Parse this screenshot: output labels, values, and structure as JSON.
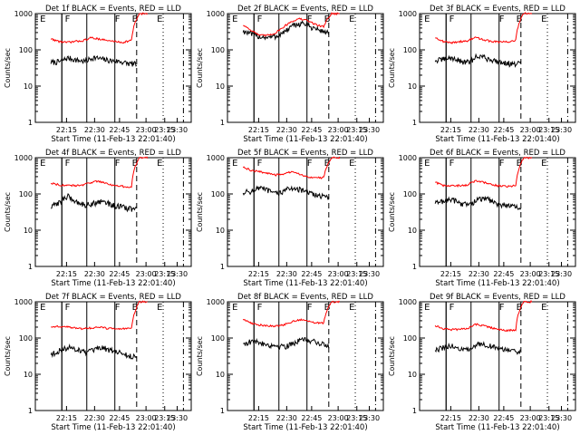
{
  "colors": {
    "events": "#000000",
    "lld": "#ff0000",
    "axis": "#000000",
    "background": "#ffffff"
  },
  "chart_data": [
    {
      "type": "line",
      "title": "Det 1f BLACK = Events, RED = LLD",
      "ylabel": "Counts/sec",
      "xlabel": "Start Time (11-Feb-13 22:01:40)",
      "xticks": [
        "22:15",
        "22:30",
        "22:45",
        "23:00",
        "23:15",
        "23:30"
      ],
      "yticks": [
        "1",
        "10",
        "100",
        "1000"
      ],
      "yscale": "log",
      "ylim": [
        1,
        1000
      ],
      "markers": [
        "E",
        "F",
        "F",
        "B",
        "E"
      ],
      "series": [
        {
          "name": "Events",
          "values": [
            45,
            47,
            60,
            52,
            48,
            62,
            55,
            50,
            48,
            42,
            40
          ]
        },
        {
          "name": "LLD",
          "values": [
            200,
            170,
            160,
            170,
            180,
            215,
            200,
            180,
            170,
            160,
            185,
            1000,
            1000
          ]
        }
      ]
    },
    {
      "type": "line",
      "title": "Det 2f BLACK = Events, RED = LLD",
      "ylabel": "Counts/sec",
      "xlabel": "Start Time (11-Feb-13 22:01:40)",
      "xticks": [
        "22:15",
        "22:30",
        "22:45",
        "23:00",
        "23:15",
        "23:30"
      ],
      "yticks": [
        "1",
        "10",
        "100",
        "1000"
      ],
      "yscale": "log",
      "ylim": [
        1,
        1000
      ],
      "markers": [
        "E",
        "F",
        "F",
        "B",
        "E"
      ],
      "series": [
        {
          "name": "Events",
          "values": [
            330,
            270,
            230,
            220,
            240,
            330,
            480,
            550,
            420,
            340,
            300
          ]
        },
        {
          "name": "LLD",
          "values": [
            480,
            350,
            250,
            250,
            290,
            420,
            600,
            720,
            640,
            500,
            430,
            1000,
            1000
          ]
        }
      ]
    },
    {
      "type": "line",
      "title": "Det 3f BLACK = Events, RED = LLD",
      "ylabel": "Counts/sec",
      "xlabel": "Start Time (11-Feb-13 22:01:40)",
      "xticks": [
        "22:15",
        "22:30",
        "22:45",
        "23:00",
        "23:15",
        "23:30"
      ],
      "yticks": [
        "1",
        "10",
        "100",
        "1000"
      ],
      "yscale": "log",
      "ylim": [
        1,
        1000
      ],
      "markers": [
        "E",
        "F",
        "F",
        "B",
        "E"
      ],
      "series": [
        {
          "name": "Events",
          "values": [
            50,
            55,
            60,
            48,
            45,
            70,
            58,
            50,
            45,
            40,
            42
          ]
        },
        {
          "name": "LLD",
          "values": [
            220,
            170,
            155,
            170,
            175,
            220,
            190,
            170,
            165,
            165,
            185,
            1000,
            1000
          ]
        }
      ]
    },
    {
      "type": "line",
      "title": "Det 4f BLACK = Events, RED = LLD",
      "ylabel": "Counts/sec",
      "xlabel": "Start Time (11-Feb-13 22:01:40)",
      "xticks": [
        "22:15",
        "22:30",
        "22:45",
        "23:00",
        "23:15",
        "23:30"
      ],
      "yticks": [
        "1",
        "10",
        "100",
        "1000"
      ],
      "yscale": "log",
      "ylim": [
        1,
        1000
      ],
      "markers": [
        "E",
        "F",
        "F",
        "B",
        "E"
      ],
      "series": [
        {
          "name": "Events",
          "values": [
            42,
            60,
            85,
            60,
            50,
            55,
            65,
            50,
            45,
            40,
            38
          ]
        },
        {
          "name": "LLD",
          "values": [
            200,
            180,
            170,
            170,
            175,
            210,
            225,
            190,
            170,
            160,
            155,
            1000,
            1000
          ]
        }
      ]
    },
    {
      "type": "line",
      "title": "Det 5f BLACK = Events, RED = LLD",
      "ylabel": "Counts/sec",
      "xlabel": "Start Time (11-Feb-13 22:01:40)",
      "xticks": [
        "22:15",
        "22:30",
        "22:45",
        "23:00",
        "23:15",
        "23:30"
      ],
      "yticks": [
        "1",
        "10",
        "100",
        "1000"
      ],
      "yscale": "log",
      "ylim": [
        1,
        1000
      ],
      "markers": [
        "E",
        "F",
        "F",
        "B",
        "E"
      ],
      "series": [
        {
          "name": "Events",
          "values": [
            110,
            120,
            150,
            120,
            100,
            130,
            150,
            120,
            100,
            90,
            80
          ]
        },
        {
          "name": "LLD",
          "values": [
            540,
            450,
            410,
            380,
            330,
            360,
            400,
            350,
            300,
            280,
            280,
            1000,
            1000
          ]
        }
      ]
    },
    {
      "type": "line",
      "title": "Det 6f BLACK = Events, RED = LLD",
      "ylabel": "Counts/sec",
      "xlabel": "Start Time (11-Feb-13 22:01:40)",
      "xticks": [
        "22:15",
        "22:30",
        "22:45",
        "23:00",
        "23:15",
        "23:30"
      ],
      "yticks": [
        "1",
        "10",
        "100",
        "1000"
      ],
      "yscale": "log",
      "ylim": [
        1,
        1000
      ],
      "markers": [
        "E",
        "F",
        "F",
        "B",
        "E"
      ],
      "series": [
        {
          "name": "Events",
          "values": [
            55,
            65,
            70,
            55,
            50,
            70,
            75,
            55,
            50,
            45,
            40
          ]
        },
        {
          "name": "LLD",
          "values": [
            210,
            170,
            165,
            170,
            175,
            230,
            210,
            180,
            165,
            160,
            170,
            1000,
            1000
          ]
        }
      ]
    },
    {
      "type": "line",
      "title": "Det 7f BLACK = Events, RED = LLD",
      "ylabel": "Counts/sec",
      "xlabel": "Start Time (11-Feb-13 22:01:40)",
      "xticks": [
        "22:15",
        "22:30",
        "22:45",
        "23:00",
        "23:15",
        "23:30"
      ],
      "yticks": [
        "1",
        "10",
        "100",
        "1000"
      ],
      "yscale": "log",
      "ylim": [
        1,
        1000
      ],
      "markers": [
        "E",
        "F",
        "F",
        "B",
        "E"
      ],
      "series": [
        {
          "name": "Events",
          "values": [
            35,
            45,
            55,
            50,
            40,
            45,
            55,
            45,
            40,
            32,
            30
          ]
        },
        {
          "name": "LLD",
          "values": [
            200,
            210,
            200,
            190,
            180,
            190,
            200,
            185,
            180,
            180,
            180,
            1000,
            1000
          ]
        }
      ]
    },
    {
      "type": "line",
      "title": "Det 8f BLACK = Events, RED = LLD",
      "ylabel": "Counts/sec",
      "xlabel": "Start Time (11-Feb-13 22:01:40)",
      "xticks": [
        "22:15",
        "22:30",
        "22:45",
        "23:00",
        "23:15",
        "23:30"
      ],
      "yticks": [
        "1",
        "10",
        "100",
        "1000"
      ],
      "yscale": "log",
      "ylim": [
        1,
        1000
      ],
      "markers": [
        "E",
        "F",
        "F",
        "B",
        "E"
      ],
      "series": [
        {
          "name": "Events",
          "values": [
            70,
            80,
            75,
            65,
            60,
            60,
            75,
            90,
            85,
            70,
            60
          ]
        },
        {
          "name": "LLD",
          "values": [
            330,
            260,
            230,
            220,
            210,
            230,
            280,
            320,
            300,
            260,
            260,
            1000,
            1000
          ]
        }
      ]
    },
    {
      "type": "line",
      "title": "Det 9f BLACK = Events, RED = LLD",
      "ylabel": "Counts/sec",
      "xlabel": "Start Time (11-Feb-13 22:01:40)",
      "xticks": [
        "22:15",
        "22:30",
        "22:45",
        "23:00",
        "23:15",
        "23:30"
      ],
      "yticks": [
        "1",
        "10",
        "100",
        "1000"
      ],
      "yscale": "log",
      "ylim": [
        1,
        1000
      ],
      "markers": [
        "E",
        "F",
        "F",
        "B",
        "E"
      ],
      "series": [
        {
          "name": "Events",
          "values": [
            45,
            55,
            60,
            50,
            45,
            70,
            65,
            55,
            50,
            42,
            40
          ]
        },
        {
          "name": "LLD",
          "values": [
            220,
            180,
            170,
            175,
            180,
            240,
            220,
            190,
            170,
            160,
            170,
            1000,
            1000
          ]
        }
      ]
    }
  ]
}
